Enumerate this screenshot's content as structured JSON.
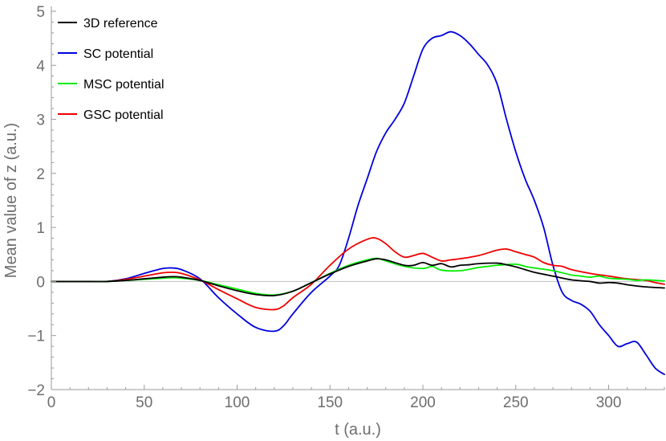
{
  "chart_data": {
    "type": "line",
    "title": "",
    "xlabel": "t (a.u.)",
    "ylabel": "Mean value of z (a.u.)",
    "xlim": [
      0,
      330
    ],
    "ylim": [
      -2,
      5
    ],
    "x_ticks": [
      0,
      50,
      100,
      150,
      200,
      250,
      300
    ],
    "x_tick_labels": [
      "0",
      "50",
      "100",
      "150",
      "200",
      "250",
      "300"
    ],
    "y_ticks": [
      -2,
      -1,
      0,
      1,
      2,
      3,
      4,
      5
    ],
    "y_tick_labels": [
      "−2",
      "−1",
      "0",
      "1",
      "2",
      "3",
      "4",
      "5"
    ],
    "grid": false,
    "zero_line": true,
    "legend_position": "top-left",
    "colors": {
      "axis": "#9a9a9a",
      "tick_text": "#6e6e6e",
      "zero_line": "#c0c0c0"
    },
    "series": [
      {
        "name": "3D reference",
        "color": "#000000",
        "points": [
          [
            0,
            0
          ],
          [
            20,
            0
          ],
          [
            30,
            0
          ],
          [
            40,
            0.02
          ],
          [
            50,
            0.05
          ],
          [
            60,
            0.08
          ],
          [
            65,
            0.09
          ],
          [
            70,
            0.08
          ],
          [
            80,
            0.02
          ],
          [
            90,
            -0.08
          ],
          [
            100,
            -0.17
          ],
          [
            110,
            -0.24
          ],
          [
            120,
            -0.26
          ],
          [
            130,
            -0.18
          ],
          [
            140,
            -0.02
          ],
          [
            150,
            0.14
          ],
          [
            160,
            0.28
          ],
          [
            170,
            0.38
          ],
          [
            175,
            0.42
          ],
          [
            180,
            0.4
          ],
          [
            190,
            0.3
          ],
          [
            195,
            0.3
          ],
          [
            200,
            0.35
          ],
          [
            205,
            0.3
          ],
          [
            210,
            0.33
          ],
          [
            215,
            0.27
          ],
          [
            220,
            0.3
          ],
          [
            225,
            0.31
          ],
          [
            230,
            0.33
          ],
          [
            240,
            0.34
          ],
          [
            245,
            0.31
          ],
          [
            250,
            0.27
          ],
          [
            255,
            0.22
          ],
          [
            260,
            0.17
          ],
          [
            270,
            0.1
          ],
          [
            280,
            0.03
          ],
          [
            290,
            0.0
          ],
          [
            295,
            -0.03
          ],
          [
            300,
            -0.02
          ],
          [
            305,
            -0.03
          ],
          [
            310,
            -0.06
          ],
          [
            320,
            -0.1
          ],
          [
            330,
            -0.12
          ]
        ]
      },
      {
        "name": "SC potential",
        "color": "#0000dd",
        "points": [
          [
            0,
            0
          ],
          [
            20,
            0
          ],
          [
            30,
            0
          ],
          [
            40,
            0.05
          ],
          [
            50,
            0.15
          ],
          [
            60,
            0.24
          ],
          [
            65,
            0.25
          ],
          [
            70,
            0.22
          ],
          [
            80,
            0.05
          ],
          [
            90,
            -0.3
          ],
          [
            100,
            -0.6
          ],
          [
            110,
            -0.85
          ],
          [
            120,
            -0.92
          ],
          [
            125,
            -0.82
          ],
          [
            130,
            -0.6
          ],
          [
            140,
            -0.2
          ],
          [
            150,
            0.1
          ],
          [
            155,
            0.3
          ],
          [
            160,
            0.8
          ],
          [
            165,
            1.4
          ],
          [
            170,
            1.9
          ],
          [
            175,
            2.4
          ],
          [
            180,
            2.75
          ],
          [
            185,
            3.0
          ],
          [
            190,
            3.3
          ],
          [
            195,
            3.8
          ],
          [
            200,
            4.3
          ],
          [
            205,
            4.5
          ],
          [
            210,
            4.55
          ],
          [
            215,
            4.62
          ],
          [
            220,
            4.55
          ],
          [
            225,
            4.4
          ],
          [
            230,
            4.2
          ],
          [
            235,
            4.0
          ],
          [
            240,
            3.65
          ],
          [
            245,
            3.0
          ],
          [
            250,
            2.4
          ],
          [
            255,
            1.9
          ],
          [
            260,
            1.5
          ],
          [
            265,
            1.0
          ],
          [
            270,
            0.3
          ],
          [
            275,
            -0.2
          ],
          [
            280,
            -0.35
          ],
          [
            285,
            -0.42
          ],
          [
            290,
            -0.55
          ],
          [
            295,
            -0.8
          ],
          [
            300,
            -1.0
          ],
          [
            305,
            -1.2
          ],
          [
            310,
            -1.15
          ],
          [
            315,
            -1.12
          ],
          [
            320,
            -1.35
          ],
          [
            325,
            -1.6
          ],
          [
            330,
            -1.72
          ]
        ]
      },
      {
        "name": "MSC potential",
        "color": "#00ee00",
        "points": [
          [
            0,
            0
          ],
          [
            20,
            0
          ],
          [
            30,
            0
          ],
          [
            40,
            0.02
          ],
          [
            50,
            0.04
          ],
          [
            60,
            0.06
          ],
          [
            65,
            0.07
          ],
          [
            70,
            0.06
          ],
          [
            80,
            0.02
          ],
          [
            90,
            -0.06
          ],
          [
            100,
            -0.14
          ],
          [
            110,
            -0.22
          ],
          [
            120,
            -0.25
          ],
          [
            130,
            -0.18
          ],
          [
            140,
            -0.02
          ],
          [
            150,
            0.15
          ],
          [
            160,
            0.3
          ],
          [
            170,
            0.4
          ],
          [
            175,
            0.43
          ],
          [
            180,
            0.38
          ],
          [
            190,
            0.28
          ],
          [
            200,
            0.24
          ],
          [
            205,
            0.28
          ],
          [
            210,
            0.21
          ],
          [
            220,
            0.2
          ],
          [
            230,
            0.26
          ],
          [
            235,
            0.28
          ],
          [
            240,
            0.3
          ],
          [
            250,
            0.32
          ],
          [
            255,
            0.28
          ],
          [
            260,
            0.25
          ],
          [
            270,
            0.2
          ],
          [
            280,
            0.12
          ],
          [
            285,
            0.1
          ],
          [
            290,
            0.08
          ],
          [
            295,
            0.1
          ],
          [
            300,
            0.06
          ],
          [
            310,
            0.04
          ],
          [
            315,
            0.02
          ],
          [
            320,
            0.03
          ],
          [
            330,
            0.01
          ]
        ]
      },
      {
        "name": "GSC potential",
        "color": "#ee0000",
        "points": [
          [
            0,
            0
          ],
          [
            20,
            0
          ],
          [
            30,
            0
          ],
          [
            40,
            0.04
          ],
          [
            50,
            0.1
          ],
          [
            60,
            0.16
          ],
          [
            65,
            0.17
          ],
          [
            70,
            0.15
          ],
          [
            80,
            0.03
          ],
          [
            90,
            -0.15
          ],
          [
            100,
            -0.32
          ],
          [
            110,
            -0.48
          ],
          [
            120,
            -0.52
          ],
          [
            125,
            -0.45
          ],
          [
            130,
            -0.3
          ],
          [
            140,
            -0.05
          ],
          [
            150,
            0.3
          ],
          [
            160,
            0.6
          ],
          [
            170,
            0.78
          ],
          [
            175,
            0.8
          ],
          [
            180,
            0.7
          ],
          [
            185,
            0.55
          ],
          [
            190,
            0.45
          ],
          [
            195,
            0.48
          ],
          [
            200,
            0.52
          ],
          [
            205,
            0.45
          ],
          [
            210,
            0.38
          ],
          [
            215,
            0.4
          ],
          [
            220,
            0.42
          ],
          [
            230,
            0.48
          ],
          [
            240,
            0.58
          ],
          [
            245,
            0.6
          ],
          [
            250,
            0.55
          ],
          [
            255,
            0.5
          ],
          [
            260,
            0.45
          ],
          [
            265,
            0.35
          ],
          [
            270,
            0.3
          ],
          [
            275,
            0.28
          ],
          [
            280,
            0.22
          ],
          [
            290,
            0.15
          ],
          [
            300,
            0.1
          ],
          [
            310,
            0.05
          ],
          [
            320,
            0.02
          ],
          [
            325,
            -0.02
          ],
          [
            330,
            -0.05
          ]
        ]
      }
    ]
  }
}
